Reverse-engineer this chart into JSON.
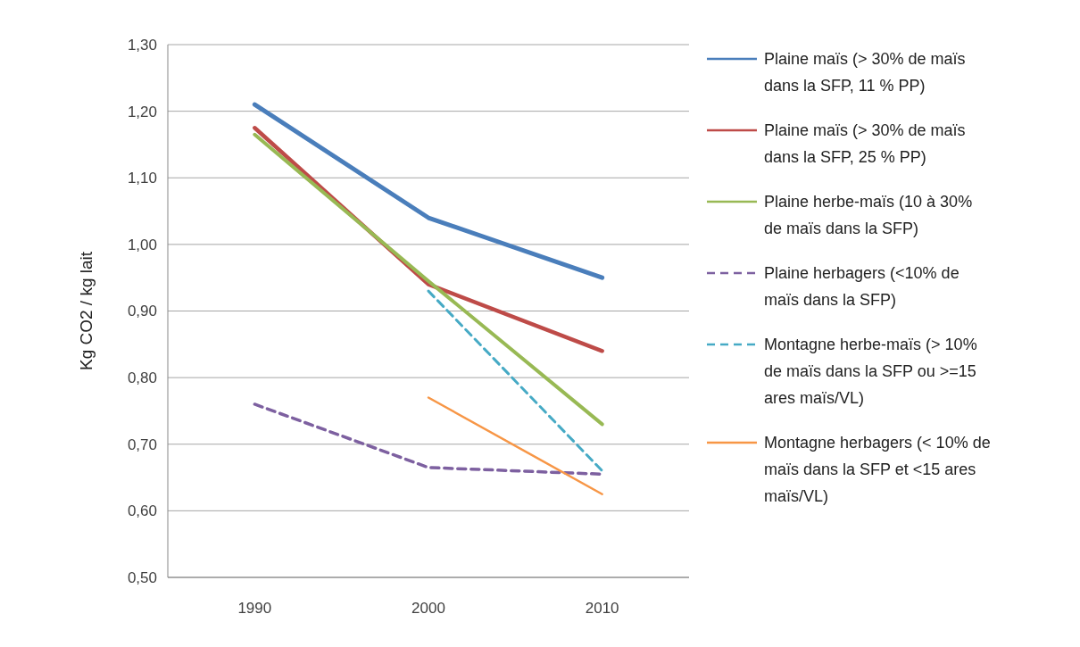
{
  "chart_data": {
    "type": "line",
    "ylabel": "Kg CO2 / kg lait",
    "categories": [
      "1990",
      "2000",
      "2010"
    ],
    "ylim": [
      0.5,
      1.3
    ],
    "yticks": [
      {
        "value": 0.5,
        "label": "0,50"
      },
      {
        "value": 0.6,
        "label": "0,60"
      },
      {
        "value": 0.7,
        "label": "0,70"
      },
      {
        "value": 0.8,
        "label": "0,80"
      },
      {
        "value": 0.9,
        "label": "0,90"
      },
      {
        "value": 1.0,
        "label": "1,00"
      },
      {
        "value": 1.1,
        "label": "1,10"
      },
      {
        "value": 1.2,
        "label": "1,20"
      },
      {
        "value": 1.3,
        "label": "1,30"
      }
    ],
    "grid": "y",
    "legend": "right",
    "series": [
      {
        "name": "Plaine maïs (> 30% de maïs dans la SFP, 11 % PP)",
        "color": "#4a7ebb",
        "values": [
          1.21,
          1.04,
          0.95
        ]
      },
      {
        "name": "Plaine maïs (> 30% de maïs dans la SFP, 25 % PP)",
        "color": "#be4b48",
        "values": [
          1.175,
          0.94,
          0.84
        ]
      },
      {
        "name": "Plaine herbe-maïs  (10 à 30% de maïs dans la SFP)",
        "color": "#98b954",
        "values": [
          1.165,
          0.945,
          0.73
        ]
      },
      {
        "name": "Plaine herbagers (<10% de maïs dans la SFP)",
        "color": "#7d60a0",
        "line_style": "dashed",
        "values": [
          0.76,
          0.665,
          0.655
        ]
      },
      {
        "name": "Montagne herbe-maïs  (> 10% de maïs dans la SFP ou >=15 ares maïs/VL)",
        "color": "#46aac5",
        "line_style": "dashed",
        "values": [
          null,
          0.93,
          0.66
        ]
      },
      {
        "name": "Montagne herbagers (< 10% de maïs dans la SFP et <15 ares maïs/VL)",
        "color": "#f79646",
        "values": [
          null,
          0.77,
          0.625
        ]
      }
    ]
  }
}
